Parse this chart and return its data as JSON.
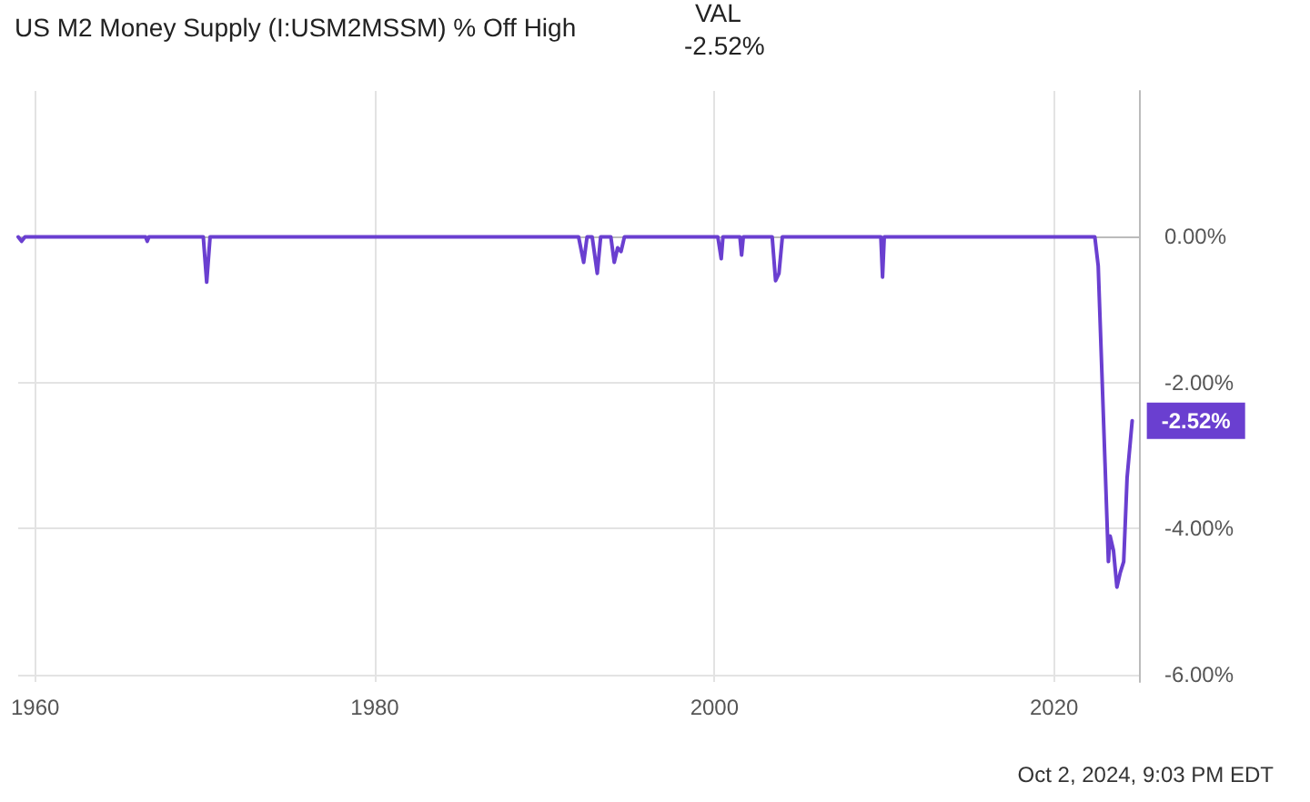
{
  "chart_data": {
    "type": "line",
    "title": "US M2 Money Supply (I:USM2MSSM) % Off High",
    "annotations": [
      "VAL",
      "-2.52%",
      "Oct 2, 2024, 9:03 PM EDT"
    ],
    "x": [
      1959.0,
      1959.2,
      1959.4,
      1966.5,
      1966.6,
      1966.7,
      1969.9,
      1970.1,
      1970.3,
      1992.0,
      1992.3,
      1992.5,
      1992.8,
      1993.1,
      1993.3,
      1993.9,
      1994.1,
      1994.3,
      1994.5,
      1994.7,
      2000.2,
      2000.4,
      2000.5,
      2001.5,
      2001.6,
      2001.7,
      2003.4,
      2003.6,
      2003.8,
      2004.0,
      2009.8,
      2009.9,
      2010.0,
      2022.4,
      2022.6,
      2023.2,
      2023.3,
      2023.5,
      2023.7,
      2023.9,
      2024.1,
      2024.3,
      2024.6
    ],
    "series": [
      {
        "color": "#6a3fd0",
        "values": [
          0,
          -0.06,
          0,
          0,
          -0.06,
          0,
          0,
          -0.62,
          0,
          0,
          -0.35,
          0,
          0,
          -0.5,
          0,
          0,
          -0.35,
          -0.15,
          -0.2,
          0,
          0,
          -0.3,
          0,
          0,
          -0.25,
          0,
          0,
          -0.6,
          -0.5,
          0,
          0,
          -0.55,
          0,
          0,
          -0.4,
          -4.45,
          -4.1,
          -4.3,
          -4.8,
          -4.6,
          -4.45,
          -3.3,
          -2.52
        ],
        "value_labels": [
          null,
          null,
          null,
          null,
          null,
          null,
          null,
          null,
          null,
          null,
          null,
          null,
          null,
          null,
          null,
          null,
          null,
          null,
          null,
          null,
          null,
          null,
          null,
          null,
          null,
          null,
          null,
          null,
          null,
          null,
          null,
          null,
          null,
          null,
          null,
          null,
          null,
          null,
          null,
          null,
          null,
          null,
          "-2.52%"
        ]
      }
    ],
    "xlim": [
      1959,
      2025
    ],
    "xticks": [
      1960,
      1980,
      2000,
      2020
    ],
    "ylim": [
      -6.1,
      2
    ],
    "yticks": [
      {
        "value": 0,
        "label": "0.00%"
      },
      {
        "value": -2,
        "label": "-2.00%"
      },
      {
        "value": -4,
        "label": "-4.00%"
      },
      {
        "value": -6,
        "label": "-6.00%"
      }
    ],
    "grid": true,
    "line_style": "solid"
  }
}
